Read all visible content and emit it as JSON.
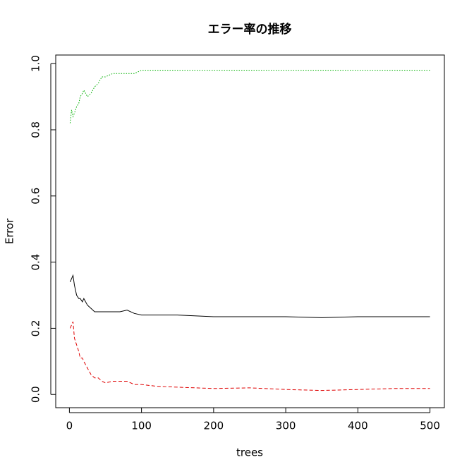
{
  "chart_data": {
    "type": "line",
    "title": "エラー率の推移",
    "x_label": "trees",
    "y_label": "Error",
    "x": [
      1,
      3,
      5,
      7,
      10,
      13,
      15,
      18,
      20,
      25,
      30,
      35,
      40,
      45,
      50,
      60,
      70,
      80,
      90,
      100,
      120,
      150,
      200,
      250,
      300,
      350,
      400,
      450,
      500
    ],
    "series": [
      {
        "color": "#000000",
        "linestyle": "solid",
        "values": [
          0.34,
          0.35,
          0.36,
          0.33,
          0.3,
          0.29,
          0.29,
          0.28,
          0.29,
          0.27,
          0.26,
          0.25,
          0.25,
          0.25,
          0.25,
          0.25,
          0.25,
          0.255,
          0.245,
          0.24,
          0.24,
          0.24,
          0.235,
          0.235,
          0.235,
          0.232,
          0.235,
          0.235,
          0.235
        ]
      },
      {
        "color": "#df0000",
        "linestyle": "dashed",
        "values": [
          0.2,
          0.21,
          0.22,
          0.17,
          0.15,
          0.13,
          0.11,
          0.11,
          0.1,
          0.08,
          0.06,
          0.05,
          0.05,
          0.04,
          0.035,
          0.04,
          0.04,
          0.04,
          0.03,
          0.03,
          0.025,
          0.022,
          0.018,
          0.02,
          0.015,
          0.012,
          0.015,
          0.018,
          0.018
        ]
      },
      {
        "color": "#00b000",
        "linestyle": "dotted",
        "values": [
          0.82,
          0.86,
          0.84,
          0.85,
          0.87,
          0.88,
          0.9,
          0.91,
          0.92,
          0.9,
          0.91,
          0.93,
          0.94,
          0.96,
          0.96,
          0.97,
          0.97,
          0.97,
          0.97,
          0.98,
          0.98,
          0.98,
          0.98,
          0.98,
          0.98,
          0.98,
          0.98,
          0.98,
          0.98
        ]
      }
    ],
    "xlim": [
      -18.96,
      519.96
    ],
    "xticks": [
      0,
      100,
      200,
      300,
      400,
      500
    ],
    "ylim": [
      -0.04,
      1.026
    ],
    "yticks": [
      {
        "value": 0,
        "label": "0.0"
      },
      0.2,
      0.4,
      0.6,
      0.8,
      {
        "value": 1,
        "label": "1.0"
      }
    ]
  }
}
